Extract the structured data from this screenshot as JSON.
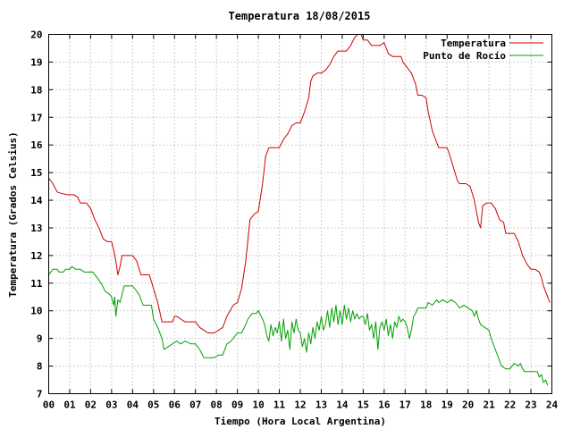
{
  "chart_data": {
    "type": "line",
    "title": "Temperatura 18/08/2015",
    "xlabel": "Tiempo (Hora Local Argentina)",
    "ylabel": "Temperatura (Grados Celsius)",
    "xlim": [
      0,
      24
    ],
    "ylim": [
      7,
      20
    ],
    "x_ticks": [
      "00",
      "01",
      "02",
      "03",
      "04",
      "05",
      "06",
      "07",
      "08",
      "09",
      "10",
      "11",
      "12",
      "13",
      "14",
      "15",
      "16",
      "17",
      "18",
      "19",
      "20",
      "21",
      "22",
      "23",
      "24"
    ],
    "y_ticks": [
      "7",
      "8",
      "9",
      "10",
      "11",
      "12",
      "13",
      "14",
      "15",
      "16",
      "17",
      "18",
      "19",
      "20"
    ],
    "grid": true,
    "legend_position": "top-right",
    "series": [
      {
        "name": "Temperatura",
        "color": "#cc0000",
        "points": [
          [
            0.0,
            14.8
          ],
          [
            0.2,
            14.6
          ],
          [
            0.4,
            14.3
          ],
          [
            0.6,
            14.25
          ],
          [
            0.9,
            14.2
          ],
          [
            1.2,
            14.2
          ],
          [
            1.4,
            14.1
          ],
          [
            1.5,
            13.9
          ],
          [
            1.8,
            13.9
          ],
          [
            2.0,
            13.7
          ],
          [
            2.2,
            13.3
          ],
          [
            2.4,
            13.0
          ],
          [
            2.6,
            12.6
          ],
          [
            2.8,
            12.5
          ],
          [
            3.0,
            12.5
          ],
          [
            3.1,
            12.2
          ],
          [
            3.2,
            11.8
          ],
          [
            3.3,
            11.3
          ],
          [
            3.4,
            11.6
          ],
          [
            3.5,
            12.0
          ],
          [
            3.7,
            12.0
          ],
          [
            4.0,
            12.0
          ],
          [
            4.2,
            11.8
          ],
          [
            4.4,
            11.3
          ],
          [
            4.6,
            11.3
          ],
          [
            4.8,
            11.3
          ],
          [
            5.0,
            10.8
          ],
          [
            5.2,
            10.3
          ],
          [
            5.4,
            9.6
          ],
          [
            5.6,
            9.6
          ],
          [
            5.9,
            9.6
          ],
          [
            6.0,
            9.8
          ],
          [
            6.1,
            9.8
          ],
          [
            6.3,
            9.7
          ],
          [
            6.5,
            9.6
          ],
          [
            6.8,
            9.6
          ],
          [
            7.0,
            9.6
          ],
          [
            7.2,
            9.4
          ],
          [
            7.4,
            9.3
          ],
          [
            7.6,
            9.2
          ],
          [
            7.9,
            9.2
          ],
          [
            8.1,
            9.3
          ],
          [
            8.3,
            9.4
          ],
          [
            8.5,
            9.8
          ],
          [
            8.8,
            10.2
          ],
          [
            9.0,
            10.3
          ],
          [
            9.2,
            10.8
          ],
          [
            9.4,
            11.8
          ],
          [
            9.6,
            13.3
          ],
          [
            9.8,
            13.5
          ],
          [
            10.0,
            13.6
          ],
          [
            10.2,
            14.6
          ],
          [
            10.35,
            15.6
          ],
          [
            10.5,
            15.9
          ],
          [
            10.8,
            15.9
          ],
          [
            11.0,
            15.9
          ],
          [
            11.2,
            16.2
          ],
          [
            11.4,
            16.4
          ],
          [
            11.6,
            16.7
          ],
          [
            11.8,
            16.8
          ],
          [
            12.0,
            16.8
          ],
          [
            12.2,
            17.2
          ],
          [
            12.4,
            17.7
          ],
          [
            12.5,
            18.3
          ],
          [
            12.6,
            18.5
          ],
          [
            12.8,
            18.6
          ],
          [
            13.0,
            18.6
          ],
          [
            13.2,
            18.7
          ],
          [
            13.4,
            18.9
          ],
          [
            13.6,
            19.2
          ],
          [
            13.8,
            19.4
          ],
          [
            14.0,
            19.4
          ],
          [
            14.2,
            19.4
          ],
          [
            14.4,
            19.6
          ],
          [
            14.6,
            19.9
          ],
          [
            14.75,
            20.0
          ],
          [
            14.9,
            20.0
          ],
          [
            15.0,
            19.8
          ],
          [
            15.2,
            19.8
          ],
          [
            15.4,
            19.6
          ],
          [
            15.6,
            19.6
          ],
          [
            15.8,
            19.6
          ],
          [
            16.0,
            19.7
          ],
          [
            16.1,
            19.5
          ],
          [
            16.2,
            19.3
          ],
          [
            16.4,
            19.2
          ],
          [
            16.6,
            19.2
          ],
          [
            16.8,
            19.2
          ],
          [
            16.9,
            19.0
          ],
          [
            17.1,
            18.8
          ],
          [
            17.3,
            18.6
          ],
          [
            17.5,
            18.2
          ],
          [
            17.6,
            17.8
          ],
          [
            17.8,
            17.8
          ],
          [
            18.0,
            17.7
          ],
          [
            18.1,
            17.2
          ],
          [
            18.3,
            16.5
          ],
          [
            18.5,
            16.1
          ],
          [
            18.6,
            15.9
          ],
          [
            18.8,
            15.9
          ],
          [
            19.0,
            15.9
          ],
          [
            19.1,
            15.7
          ],
          [
            19.3,
            15.2
          ],
          [
            19.5,
            14.7
          ],
          [
            19.6,
            14.6
          ],
          [
            19.9,
            14.6
          ],
          [
            20.1,
            14.5
          ],
          [
            20.3,
            14.0
          ],
          [
            20.5,
            13.2
          ],
          [
            20.6,
            13.0
          ],
          [
            20.7,
            13.8
          ],
          [
            20.9,
            13.9
          ],
          [
            21.1,
            13.9
          ],
          [
            21.3,
            13.7
          ],
          [
            21.5,
            13.3
          ],
          [
            21.7,
            13.2
          ],
          [
            21.8,
            12.8
          ],
          [
            22.0,
            12.8
          ],
          [
            22.2,
            12.8
          ],
          [
            22.4,
            12.5
          ],
          [
            22.6,
            12.0
          ],
          [
            22.8,
            11.7
          ],
          [
            23.0,
            11.5
          ],
          [
            23.2,
            11.5
          ],
          [
            23.4,
            11.4
          ],
          [
            23.5,
            11.2
          ],
          [
            23.6,
            10.9
          ],
          [
            23.8,
            10.5
          ],
          [
            23.9,
            10.3
          ]
        ]
      },
      {
        "name": "Punto de Rocío",
        "color": "#00a000",
        "points": [
          [
            0.0,
            11.3
          ],
          [
            0.1,
            11.4
          ],
          [
            0.2,
            11.5
          ],
          [
            0.4,
            11.5
          ],
          [
            0.5,
            11.4
          ],
          [
            0.7,
            11.4
          ],
          [
            0.8,
            11.5
          ],
          [
            1.0,
            11.5
          ],
          [
            1.1,
            11.6
          ],
          [
            1.3,
            11.5
          ],
          [
            1.5,
            11.5
          ],
          [
            1.7,
            11.4
          ],
          [
            1.9,
            11.4
          ],
          [
            2.1,
            11.4
          ],
          [
            2.3,
            11.2
          ],
          [
            2.5,
            11.0
          ],
          [
            2.7,
            10.7
          ],
          [
            2.9,
            10.6
          ],
          [
            3.0,
            10.5
          ],
          [
            3.1,
            10.2
          ],
          [
            3.15,
            10.5
          ],
          [
            3.2,
            9.8
          ],
          [
            3.3,
            10.4
          ],
          [
            3.4,
            10.3
          ],
          [
            3.6,
            10.9
          ],
          [
            3.8,
            10.9
          ],
          [
            4.0,
            10.9
          ],
          [
            4.1,
            10.8
          ],
          [
            4.3,
            10.6
          ],
          [
            4.5,
            10.2
          ],
          [
            4.7,
            10.2
          ],
          [
            4.9,
            10.2
          ],
          [
            5.0,
            9.7
          ],
          [
            5.2,
            9.4
          ],
          [
            5.4,
            9.0
          ],
          [
            5.5,
            8.6
          ],
          [
            5.7,
            8.7
          ],
          [
            5.9,
            8.8
          ],
          [
            6.1,
            8.9
          ],
          [
            6.3,
            8.8
          ],
          [
            6.5,
            8.9
          ],
          [
            6.8,
            8.8
          ],
          [
            7.0,
            8.8
          ],
          [
            7.2,
            8.6
          ],
          [
            7.4,
            8.3
          ],
          [
            7.6,
            8.3
          ],
          [
            7.9,
            8.3
          ],
          [
            8.1,
            8.4
          ],
          [
            8.3,
            8.4
          ],
          [
            8.5,
            8.8
          ],
          [
            8.7,
            8.9
          ],
          [
            9.0,
            9.2
          ],
          [
            9.2,
            9.2
          ],
          [
            9.4,
            9.5
          ],
          [
            9.5,
            9.7
          ],
          [
            9.7,
            9.9
          ],
          [
            9.9,
            9.9
          ],
          [
            10.0,
            10.0
          ],
          [
            10.2,
            9.7
          ],
          [
            10.3,
            9.5
          ],
          [
            10.4,
            9.1
          ],
          [
            10.5,
            8.9
          ],
          [
            10.6,
            9.5
          ],
          [
            10.7,
            9.1
          ],
          [
            10.8,
            9.4
          ],
          [
            10.9,
            9.2
          ],
          [
            11.0,
            9.6
          ],
          [
            11.1,
            8.9
          ],
          [
            11.2,
            9.7
          ],
          [
            11.3,
            9.0
          ],
          [
            11.4,
            9.3
          ],
          [
            11.5,
            8.6
          ],
          [
            11.6,
            9.6
          ],
          [
            11.7,
            9.2
          ],
          [
            11.8,
            9.7
          ],
          [
            11.9,
            9.3
          ],
          [
            12.0,
            9.2
          ],
          [
            12.1,
            8.7
          ],
          [
            12.2,
            9.0
          ],
          [
            12.3,
            8.5
          ],
          [
            12.4,
            9.2
          ],
          [
            12.5,
            8.8
          ],
          [
            12.6,
            9.4
          ],
          [
            12.7,
            9.0
          ],
          [
            12.8,
            9.6
          ],
          [
            12.9,
            9.3
          ],
          [
            13.0,
            9.8
          ],
          [
            13.1,
            9.3
          ],
          [
            13.2,
            9.5
          ],
          [
            13.3,
            10.0
          ],
          [
            13.4,
            9.4
          ],
          [
            13.5,
            10.1
          ],
          [
            13.6,
            9.6
          ],
          [
            13.7,
            10.2
          ],
          [
            13.8,
            9.5
          ],
          [
            13.9,
            10.0
          ],
          [
            14.0,
            9.5
          ],
          [
            14.1,
            10.2
          ],
          [
            14.2,
            9.7
          ],
          [
            14.3,
            10.1
          ],
          [
            14.4,
            9.6
          ],
          [
            14.5,
            10.0
          ],
          [
            14.6,
            9.7
          ],
          [
            14.7,
            9.9
          ],
          [
            14.8,
            9.7
          ],
          [
            14.9,
            9.8
          ],
          [
            15.0,
            9.8
          ],
          [
            15.1,
            9.5
          ],
          [
            15.2,
            9.9
          ],
          [
            15.3,
            9.3
          ],
          [
            15.4,
            9.5
          ],
          [
            15.5,
            9.0
          ],
          [
            15.6,
            9.6
          ],
          [
            15.7,
            8.6
          ],
          [
            15.8,
            9.4
          ],
          [
            15.9,
            9.6
          ],
          [
            16.0,
            9.3
          ],
          [
            16.1,
            9.7
          ],
          [
            16.2,
            9.1
          ],
          [
            16.3,
            9.5
          ],
          [
            16.4,
            9.0
          ],
          [
            16.5,
            9.6
          ],
          [
            16.6,
            9.4
          ],
          [
            16.7,
            9.8
          ],
          [
            16.8,
            9.6
          ],
          [
            16.9,
            9.7
          ],
          [
            17.0,
            9.6
          ],
          [
            17.1,
            9.4
          ],
          [
            17.2,
            9.0
          ],
          [
            17.3,
            9.3
          ],
          [
            17.4,
            9.8
          ],
          [
            17.5,
            9.9
          ],
          [
            17.6,
            10.1
          ],
          [
            17.8,
            10.1
          ],
          [
            18.0,
            10.1
          ],
          [
            18.1,
            10.3
          ],
          [
            18.3,
            10.2
          ],
          [
            18.5,
            10.4
          ],
          [
            18.6,
            10.3
          ],
          [
            18.8,
            10.4
          ],
          [
            19.0,
            10.3
          ],
          [
            19.2,
            10.4
          ],
          [
            19.4,
            10.3
          ],
          [
            19.6,
            10.1
          ],
          [
            19.8,
            10.2
          ],
          [
            20.0,
            10.1
          ],
          [
            20.2,
            10.0
          ],
          [
            20.3,
            9.8
          ],
          [
            20.4,
            10.0
          ],
          [
            20.5,
            9.7
          ],
          [
            20.6,
            9.5
          ],
          [
            20.8,
            9.4
          ],
          [
            21.0,
            9.3
          ],
          [
            21.1,
            9.0
          ],
          [
            21.3,
            8.6
          ],
          [
            21.5,
            8.2
          ],
          [
            21.6,
            8.0
          ],
          [
            21.8,
            7.9
          ],
          [
            22.0,
            7.9
          ],
          [
            22.1,
            8.0
          ],
          [
            22.2,
            8.1
          ],
          [
            22.4,
            8.0
          ],
          [
            22.5,
            8.1
          ],
          [
            22.6,
            7.9
          ],
          [
            22.7,
            7.8
          ],
          [
            22.9,
            7.8
          ],
          [
            23.1,
            7.8
          ],
          [
            23.3,
            7.8
          ],
          [
            23.4,
            7.6
          ],
          [
            23.5,
            7.7
          ],
          [
            23.6,
            7.4
          ],
          [
            23.7,
            7.5
          ],
          [
            23.8,
            7.3
          ]
        ]
      }
    ]
  }
}
